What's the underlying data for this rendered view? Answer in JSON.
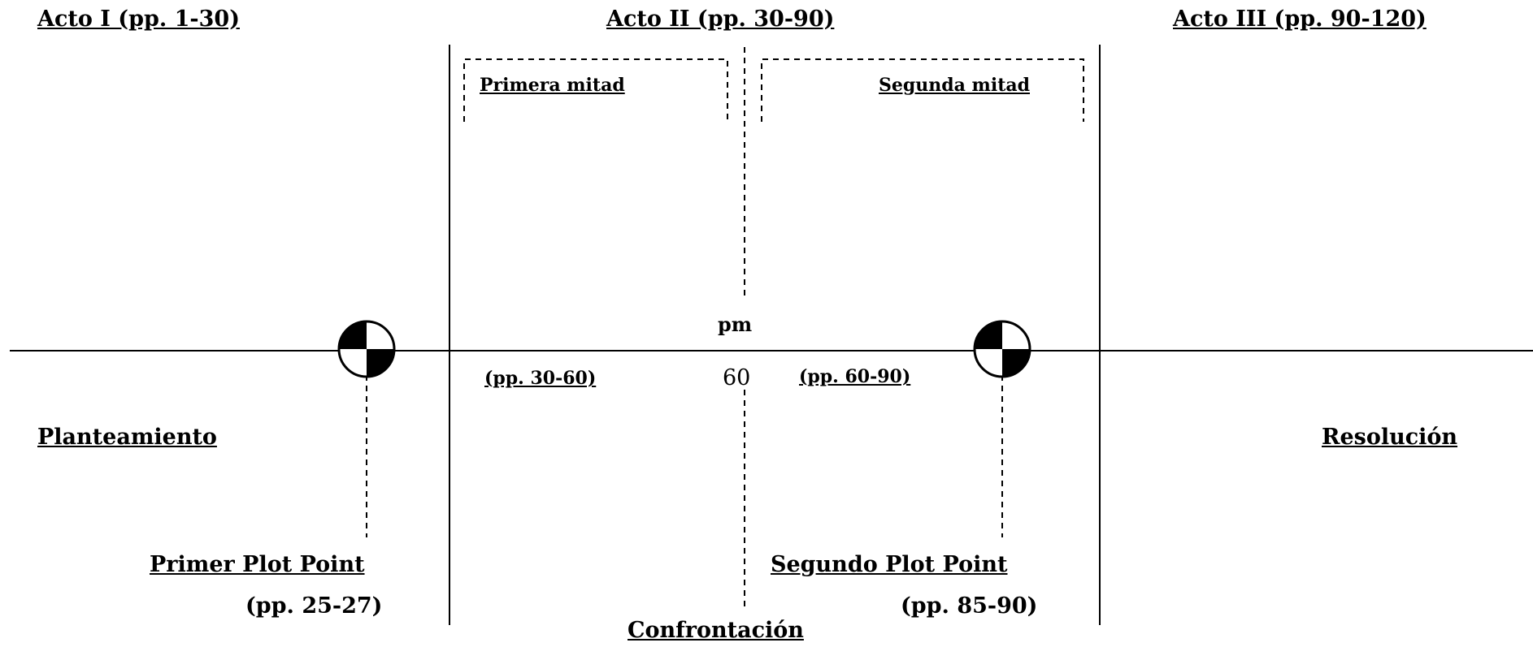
{
  "acts": {
    "act1": "Acto I (pp. 1-30)",
    "act2": "Acto II (pp. 30-90)",
    "act3": "Acto III (pp. 90-120)"
  },
  "halves": {
    "first": "Primera mitad",
    "second": "Segunda mitad"
  },
  "midpoint": {
    "label": "pm",
    "page": "60"
  },
  "ranges": {
    "first_half": "(pp. 30-60)",
    "second_half": "(pp. 60-90)"
  },
  "sections": {
    "setup": "Planteamiento",
    "resolution": "Resolución",
    "confrontation": "Confrontación"
  },
  "plot_points": {
    "first": {
      "title": "Primer Plot Point",
      "pages": "(pp. 25-27)"
    },
    "second": {
      "title": "Segundo Plot Point",
      "pages": "(pp. 85-90)"
    }
  }
}
